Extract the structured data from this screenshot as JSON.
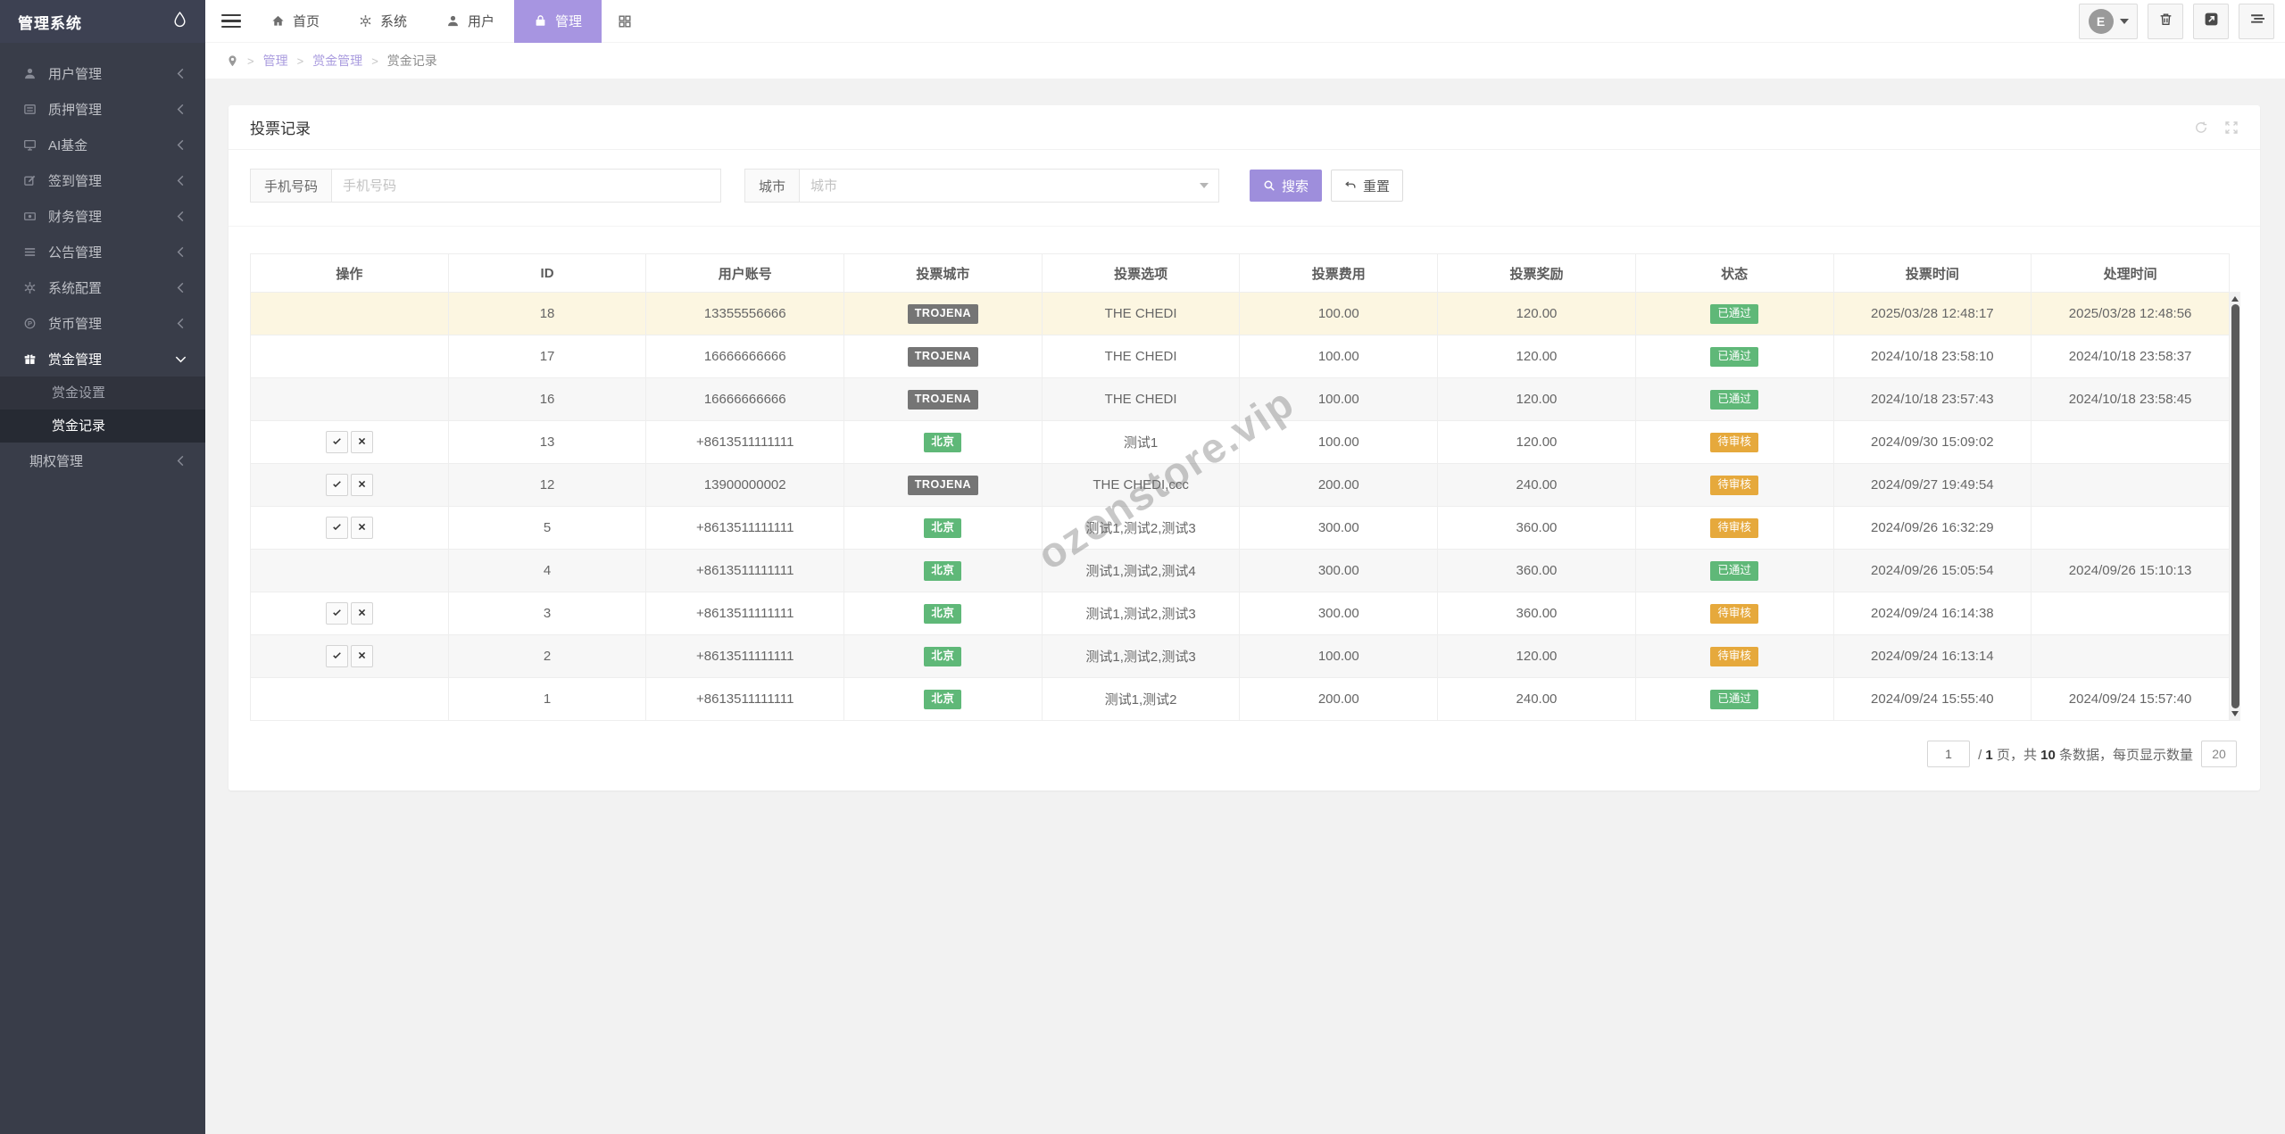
{
  "colors": {
    "accent": "#9e8edc",
    "accent_light": "#a795e1",
    "green": "#5FB878",
    "orange": "#E6A93C",
    "dark": "#757575",
    "highlight_row": "#fcf6e1"
  },
  "logo": {
    "title": "管理系统",
    "icon": "droplet-icon"
  },
  "sidebar": {
    "items": [
      {
        "icon": "user-icon",
        "label": "用户管理",
        "chevron": "left"
      },
      {
        "icon": "form-icon",
        "label": "质押管理",
        "chevron": "left"
      },
      {
        "icon": "monitor-icon",
        "label": "AI基金",
        "chevron": "left"
      },
      {
        "icon": "edit-icon",
        "label": "签到管理",
        "chevron": "left"
      },
      {
        "icon": "money-icon",
        "label": "财务管理",
        "chevron": "left"
      },
      {
        "icon": "list-icon",
        "label": "公告管理",
        "chevron": "left"
      },
      {
        "icon": "gears-icon",
        "label": "系统配置",
        "chevron": "left"
      },
      {
        "icon": "coin-icon",
        "label": "货币管理",
        "chevron": "left"
      },
      {
        "icon": "gift-icon",
        "label": "赏金管理",
        "chevron": "down",
        "active": true,
        "children": [
          {
            "label": "赏金设置",
            "active": false
          },
          {
            "label": "赏金记录",
            "active": true
          }
        ]
      },
      {
        "icon": null,
        "label": "期权管理",
        "chevron": "left"
      }
    ]
  },
  "topbar": {
    "nav": [
      {
        "icon": "home-icon",
        "label": "首页"
      },
      {
        "icon": "gear-icon",
        "label": "系统"
      },
      {
        "icon": "person-icon",
        "label": "用户"
      },
      {
        "icon": "bag-icon",
        "label": "管理",
        "active": true
      }
    ],
    "avatar_letter": "E"
  },
  "breadcrumb": {
    "items": [
      {
        "label": "管理",
        "link": true
      },
      {
        "label": "赏金管理",
        "link": true
      },
      {
        "label": "赏金记录",
        "link": false
      }
    ]
  },
  "card": {
    "title": "投票记录",
    "search": {
      "phone_label": "手机号码",
      "phone_placeholder": "手机号码",
      "phone_value": "",
      "city_label": "城市",
      "city_placeholder": "城市",
      "city_value": "",
      "search_label": "搜索",
      "reset_label": "重置"
    },
    "table": {
      "headers": [
        "操作",
        "ID",
        "用户账号",
        "投票城市",
        "投票选项",
        "投票费用",
        "投票奖励",
        "状态",
        "投票时间",
        "处理时间"
      ],
      "rows": [
        {
          "id": "18",
          "account": "13355556666",
          "city": "TROJENA",
          "city_color": "dark",
          "option": "THE CHEDI",
          "fee": "100.00",
          "reward": "120.00",
          "status": "已通过",
          "status_color": "green",
          "vote_time": "2025/03/28 12:48:17",
          "process_time": "2025/03/28 12:48:56",
          "has_ops": false,
          "highlight": true
        },
        {
          "id": "17",
          "account": "16666666666",
          "city": "TROJENA",
          "city_color": "dark",
          "option": "THE CHEDI",
          "fee": "100.00",
          "reward": "120.00",
          "status": "已通过",
          "status_color": "green",
          "vote_time": "2024/10/18 23:58:10",
          "process_time": "2024/10/18 23:58:37",
          "has_ops": false,
          "highlight": false
        },
        {
          "id": "16",
          "account": "16666666666",
          "city": "TROJENA",
          "city_color": "dark",
          "option": "THE CHEDI",
          "fee": "100.00",
          "reward": "120.00",
          "status": "已通过",
          "status_color": "green",
          "vote_time": "2024/10/18 23:57:43",
          "process_time": "2024/10/18 23:58:45",
          "has_ops": false,
          "highlight": false
        },
        {
          "id": "13",
          "account": "+8613511111111",
          "city": "北京",
          "city_color": "green",
          "option": "测试1",
          "fee": "100.00",
          "reward": "120.00",
          "status": "待审核",
          "status_color": "orange",
          "vote_time": "2024/09/30 15:09:02",
          "process_time": "",
          "has_ops": true,
          "highlight": false
        },
        {
          "id": "12",
          "account": "13900000002",
          "city": "TROJENA",
          "city_color": "dark",
          "option": "THE CHEDI,ccc",
          "fee": "200.00",
          "reward": "240.00",
          "status": "待审核",
          "status_color": "orange",
          "vote_time": "2024/09/27 19:49:54",
          "process_time": "",
          "has_ops": true,
          "highlight": false
        },
        {
          "id": "5",
          "account": "+8613511111111",
          "city": "北京",
          "city_color": "green",
          "option": "测试1,测试2,测试3",
          "fee": "300.00",
          "reward": "360.00",
          "status": "待审核",
          "status_color": "orange",
          "vote_time": "2024/09/26 16:32:29",
          "process_time": "",
          "has_ops": true,
          "highlight": false
        },
        {
          "id": "4",
          "account": "+8613511111111",
          "city": "北京",
          "city_color": "green",
          "option": "测试1,测试2,测试4",
          "fee": "300.00",
          "reward": "360.00",
          "status": "已通过",
          "status_color": "green",
          "vote_time": "2024/09/26 15:05:54",
          "process_time": "2024/09/26 15:10:13",
          "has_ops": false,
          "highlight": false
        },
        {
          "id": "3",
          "account": "+8613511111111",
          "city": "北京",
          "city_color": "green",
          "option": "测试1,测试2,测试3",
          "fee": "300.00",
          "reward": "360.00",
          "status": "待审核",
          "status_color": "orange",
          "vote_time": "2024/09/24 16:14:38",
          "process_time": "",
          "has_ops": true,
          "highlight": false
        },
        {
          "id": "2",
          "account": "+8613511111111",
          "city": "北京",
          "city_color": "green",
          "option": "测试1,测试2,测试3",
          "fee": "100.00",
          "reward": "120.00",
          "status": "待审核",
          "status_color": "orange",
          "vote_time": "2024/09/24 16:13:14",
          "process_time": "",
          "has_ops": true,
          "highlight": false
        },
        {
          "id": "1",
          "account": "+8613511111111",
          "city": "北京",
          "city_color": "green",
          "option": "测试1,测试2",
          "fee": "200.00",
          "reward": "240.00",
          "status": "已通过",
          "status_color": "green",
          "vote_time": "2024/09/24 15:55:40",
          "process_time": "2024/09/24 15:57:40",
          "has_ops": false,
          "highlight": false
        }
      ]
    },
    "pagination": {
      "page": "1",
      "sep": "/",
      "total_pages": "1",
      "pages_suffix": "页，共",
      "total_records": "10",
      "records_suffix": "条数据，每页显示数量",
      "page_size": "20"
    }
  },
  "watermark": "ozonstore.vip"
}
